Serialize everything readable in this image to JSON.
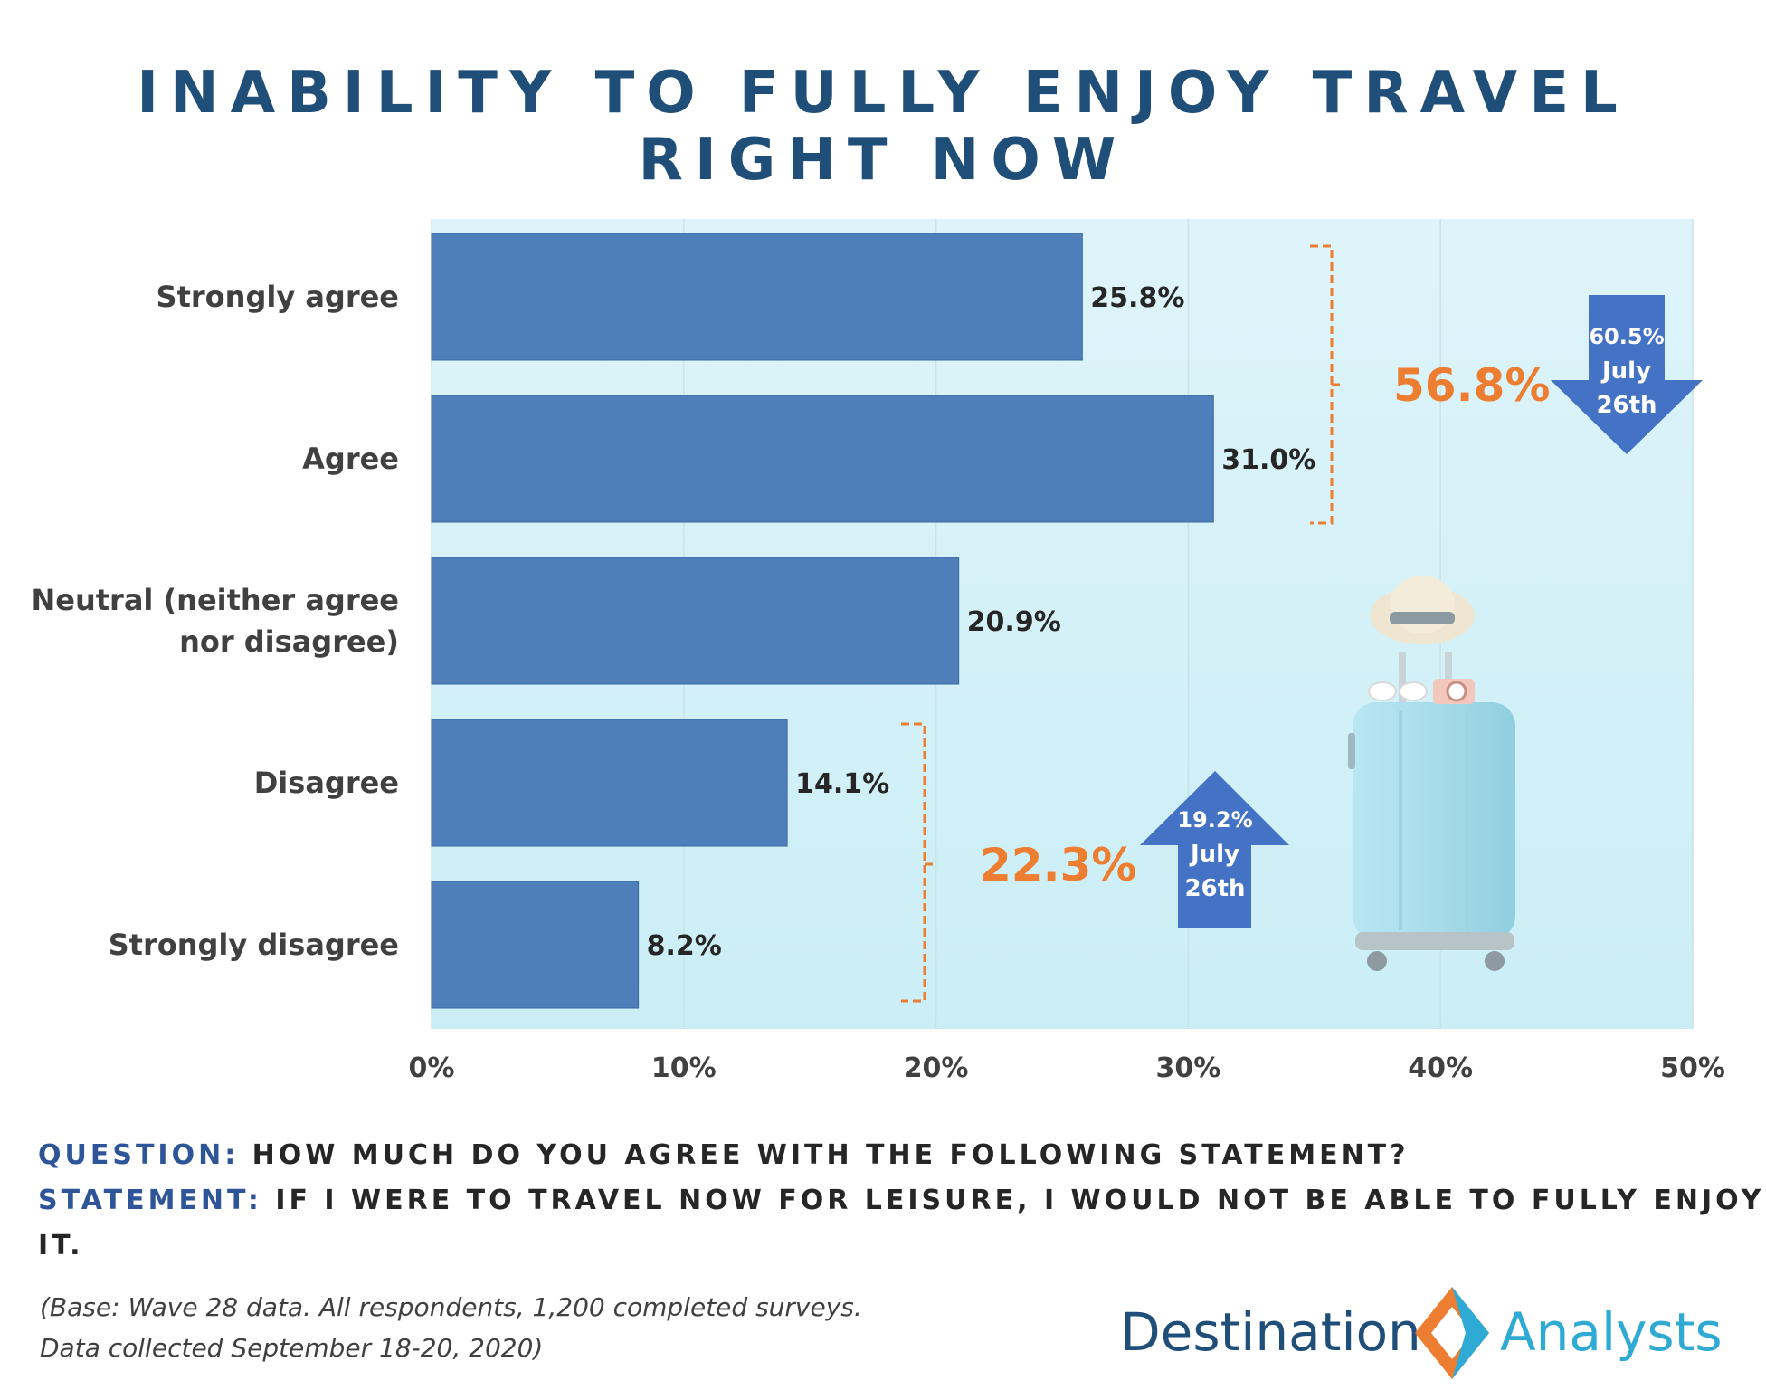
{
  "title": "INABILITY TO FULLY ENJOY TRAVEL RIGHT NOW",
  "chart_data": {
    "type": "bar",
    "orientation": "horizontal",
    "title": "INABILITY TO FULLY ENJOY TRAVEL RIGHT NOW",
    "categories": [
      "Strongly agree",
      "Agree",
      "Neutral (neither agree nor disagree)",
      "Disagree",
      "Strongly disagree"
    ],
    "category_lines": [
      [
        "Strongly agree"
      ],
      [
        "Agree"
      ],
      [
        "Neutral (neither agree",
        "nor disagree)"
      ],
      [
        "Disagree"
      ],
      [
        "Strongly disagree"
      ]
    ],
    "values": [
      25.8,
      31.0,
      20.9,
      14.1,
      8.2
    ],
    "value_labels": [
      "25.8%",
      "31.0%",
      "20.9%",
      "14.1%",
      "8.2%"
    ],
    "xlim": [
      0,
      50
    ],
    "ticks": [
      0,
      10,
      20,
      30,
      40,
      50
    ],
    "tick_labels": [
      "0%",
      "10%",
      "20%",
      "30%",
      "40%",
      "50%"
    ],
    "xlabel": "",
    "ylabel": "",
    "grid": true,
    "bar_color": "#4f7fba",
    "annotations": [
      {
        "total": "56.8%",
        "groups": [
          0,
          1
        ],
        "comparison": {
          "direction": "down",
          "lines": [
            "60.5%",
            "July",
            "26th"
          ]
        }
      },
      {
        "total": "22.3%",
        "groups": [
          3,
          4
        ],
        "comparison": {
          "direction": "up",
          "lines": [
            "19.2%",
            "July",
            "26th"
          ]
        }
      }
    ]
  },
  "question": {
    "label": "QUESTION:",
    "text": "HOW MUCH DO YOU AGREE WITH THE FOLLOWING STATEMENT?"
  },
  "statement": {
    "label": "STATEMENT:",
    "text": "IF I WERE TO TRAVEL NOW FOR LEISURE, I WOULD NOT BE ABLE TO FULLY ENJOY IT."
  },
  "base_note": {
    "line1": "(Base: Wave 28 data. All respondents, 1,200 completed surveys.",
    "line2": "Data collected September 18-20, 2020)"
  },
  "logo": {
    "word1": "Destination",
    "word2": "Analysts"
  },
  "colors": {
    "title": "#1f4e79",
    "accent": "#ed7d31",
    "arrow": "#4472c4",
    "plot_bg": "#e0f3f9"
  }
}
